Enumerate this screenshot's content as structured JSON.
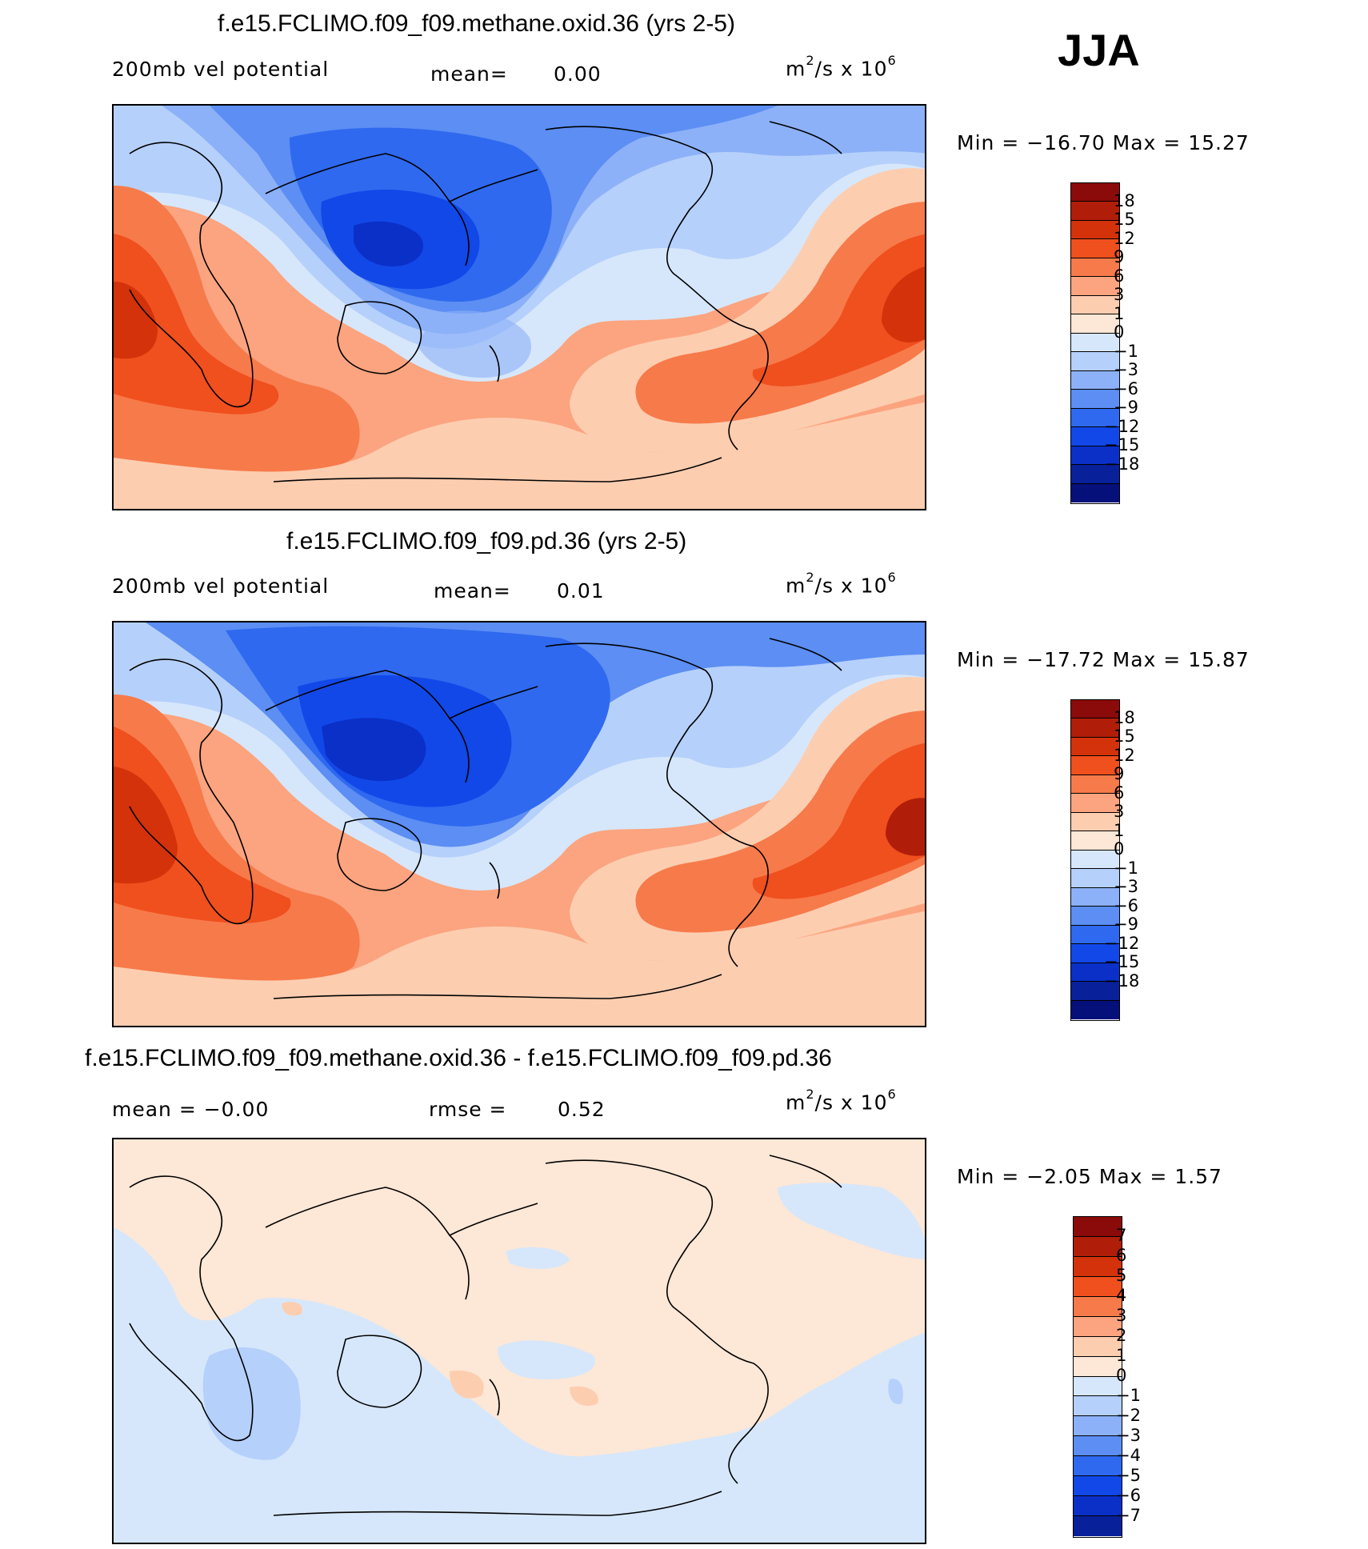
{
  "season": "JJA",
  "panels": [
    {
      "title": "f.e15.FCLIMO.f09_f09.methane.oxid.36 (yrs 2-5)",
      "subtitle_left": "200mb vel potential",
      "subtitle_mid_label": "mean=",
      "subtitle_mid_value": "0.00",
      "units": "m",
      "units_sup": "2",
      "units_tail": "/s x 10",
      "units_exp": "6",
      "minmax": "Min = −16.70 Max =  15.27",
      "colorbar": {
        "colors": [
          "#8b0a0a",
          "#b01e0a",
          "#d4320a",
          "#f04f1e",
          "#f77a4a",
          "#fba47f",
          "#fdcdb0",
          "#fde7d6",
          "#d6e7fb",
          "#b5d0fb",
          "#8cb1f8",
          "#5c8ef3",
          "#2f69ef",
          "#1248e8",
          "#0a30c8",
          "#082099",
          "#06107a"
        ],
        "labels": [
          "18",
          "15",
          "12",
          "9",
          "6",
          "3",
          "1",
          "0",
          "−1",
          "−3",
          "−6",
          "−9",
          "−12",
          "−15",
          "−18"
        ]
      }
    },
    {
      "title": "f.e15.FCLIMO.f09_f09.pd.36 (yrs 2-5)",
      "subtitle_left": "200mb vel potential",
      "subtitle_mid_label": "mean=",
      "subtitle_mid_value": "0.01",
      "units": "m",
      "units_sup": "2",
      "units_tail": "/s x 10",
      "units_exp": "6",
      "minmax": "Min = −17.72 Max =  15.87",
      "colorbar": {
        "colors": [
          "#8b0a0a",
          "#b01e0a",
          "#d4320a",
          "#f04f1e",
          "#f77a4a",
          "#fba47f",
          "#fdcdb0",
          "#fde7d6",
          "#d6e7fb",
          "#b5d0fb",
          "#8cb1f8",
          "#5c8ef3",
          "#2f69ef",
          "#1248e8",
          "#0a30c8",
          "#082099",
          "#06107a"
        ],
        "labels": [
          "18",
          "15",
          "12",
          "9",
          "6",
          "3",
          "1",
          "0",
          "−1",
          "−3",
          "−6",
          "−9",
          "−12",
          "−15",
          "−18"
        ]
      }
    },
    {
      "title": "f.e15.FCLIMO.f09_f09.methane.oxid.36 - f.e15.FCLIMO.f09_f09.pd.36",
      "subtitle_left": "mean =  −0.00",
      "subtitle_mid_label": "rmse =",
      "subtitle_mid_value": "0.52",
      "units": "m",
      "units_sup": "2",
      "units_tail": "/s x 10",
      "units_exp": "6",
      "minmax": "Min =  −2.05 Max =   1.57",
      "colorbar": {
        "colors": [
          "#8b0a0a",
          "#b01e0a",
          "#d4320a",
          "#f04f1e",
          "#f77a4a",
          "#fba47f",
          "#fdcdb0",
          "#fde7d6",
          "#d6e7fb",
          "#b5d0fb",
          "#8cb1f8",
          "#5c8ef3",
          "#2f69ef",
          "#1248e8",
          "#0a30c8",
          "#082099"
        ],
        "labels": [
          "7",
          "6",
          "5",
          "4",
          "3",
          "2",
          "1",
          "0",
          "−1",
          "−2",
          "−3",
          "−4",
          "−5",
          "−6",
          "−7"
        ]
      }
    }
  ]
}
